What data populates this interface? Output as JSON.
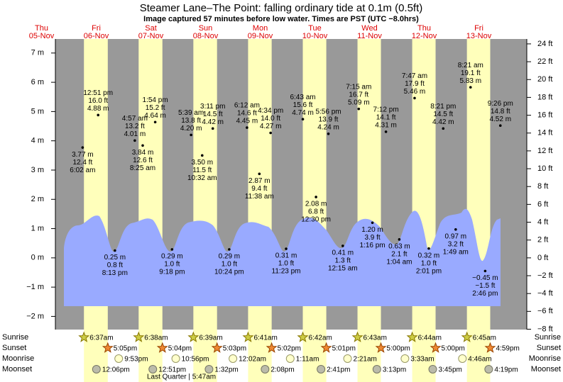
{
  "chart_data": {
    "type": "tide",
    "title": "Steamer Lane–The Point: falling  ordinary tide at 0.1m (0.5ft)",
    "subtitle": "Image captured 57 minutes before low water. Times are PST (UTC −8.0hrs)",
    "ylim": [
      -2.45,
      7.48
    ],
    "yticks": [
      {
        "value": -2,
        "label": "−2 m"
      },
      {
        "value": -1,
        "label": "−1 m"
      },
      {
        "value": 0,
        "label": "0 m"
      },
      {
        "value": 1,
        "label": "1 m"
      },
      {
        "value": 2,
        "label": "2 m"
      },
      {
        "value": 3,
        "label": "3 m"
      },
      {
        "value": 4,
        "label": "4 m"
      },
      {
        "value": 5,
        "label": "5 m"
      },
      {
        "value": 6,
        "label": "6 m"
      },
      {
        "value": 7,
        "label": "7 m"
      }
    ],
    "y2lim": [
      -8.04,
      24.55
    ],
    "y2ticks": [
      {
        "value": -8,
        "label": "−8 ft"
      },
      {
        "value": -6,
        "label": "−6 ft"
      },
      {
        "value": -4,
        "label": "−4 ft"
      },
      {
        "value": -2,
        "label": "−2 ft"
      },
      {
        "value": 0,
        "label": "0 ft"
      },
      {
        "value": 2,
        "label": "2 ft"
      },
      {
        "value": 4,
        "label": "4 ft"
      },
      {
        "value": 6,
        "label": "6 ft"
      },
      {
        "value": 8,
        "label": "8 ft"
      },
      {
        "value": 10,
        "label": "10 ft"
      },
      {
        "value": 12,
        "label": "12 ft"
      },
      {
        "value": 14,
        "label": "14 ft"
      },
      {
        "value": 16,
        "label": "16 ft"
      },
      {
        "value": 18,
        "label": "18 ft"
      },
      {
        "value": 20,
        "label": "20 ft"
      },
      {
        "value": 22,
        "label": "22 ft"
      },
      {
        "value": 24,
        "label": "24 ft"
      }
    ],
    "day_color": "#dd0000",
    "daylight_color": "#ffffbb",
    "night_color": "#999999",
    "row_labels": [
      "Sunrise",
      "Sunset",
      "Moonrise",
      "Moonset"
    ],
    "days": [
      {
        "name": "Thu",
        "date": "05-Nov"
      },
      {
        "name": "Fri",
        "date": "06-Nov",
        "sunrise": "6:37am",
        "sunset": "5:05pm",
        "moonrise": "9:53pm",
        "moonset": "12:06pm",
        "times": [
          "6:02 am",
          "12:51 pm",
          "8:13 pm"
        ],
        "values": [
          3.77,
          4.88,
          0.25
        ],
        "value_labels": [
          "3.77 m",
          "4.88 m",
          "0.25 m"
        ],
        "feet_labels": [
          "12.4 ft",
          "16.0 ft",
          "0.8 ft"
        ]
      },
      {
        "name": "Sat",
        "date": "07-Nov",
        "sunrise": "6:38am",
        "sunset": "5:04pm",
        "moonrise": "10:56pm",
        "moonset": "12:51pm",
        "times": [
          "4:57 am",
          "8:25 am",
          "1:54 pm",
          "9:18 pm"
        ],
        "values": [
          4.01,
          3.84,
          4.64,
          0.29
        ],
        "value_labels": [
          "4.01 m",
          "3.84 m",
          "4.64 m",
          "0.29 m"
        ],
        "feet_labels": [
          "13.2 ft",
          "12.6 ft",
          "15.2 ft",
          "1.0 ft"
        ]
      },
      {
        "name": "Sun",
        "date": "08-Nov",
        "sunrise": "6:39am",
        "sunset": "5:03pm",
        "moonset": "1:32pm",
        "moon_phase": "Last Quarter | 5:47am",
        "times": [
          "5:39 am",
          "10:32 am",
          "3:11 pm",
          "10:24 pm"
        ],
        "values": [
          4.2,
          3.5,
          4.42,
          0.29
        ],
        "value_labels": [
          "4.20 m",
          "3.50 m",
          "4.42 m",
          "0.29 m"
        ],
        "feet_labels": [
          "13.8 ft",
          "11.5 ft",
          "14.5 ft",
          "1.0 ft"
        ]
      },
      {
        "name": "Mon",
        "date": "09-Nov",
        "sunrise": "6:41am",
        "sunset": "5:02pm",
        "moonrise": "12:02am",
        "moonset": "2:08pm",
        "times": [
          "6:12 am",
          "11:38 am",
          "4:34 pm",
          "11:23 pm"
        ],
        "values": [
          4.45,
          2.87,
          4.27,
          0.31
        ],
        "value_labels": [
          "4.45 m",
          "2.87 m",
          "4.27 m",
          "0.31 m"
        ],
        "feet_labels": [
          "14.6 ft",
          "9.4 ft",
          "14.0 ft",
          "1.0 ft"
        ]
      },
      {
        "name": "Tue",
        "date": "10-Nov",
        "sunrise": "6:42am",
        "sunset": "5:01pm",
        "moonrise": "1:11am",
        "moonset": "2:41pm",
        "times": [
          "6:43 am",
          "12:30 pm",
          "5:56 pm"
        ],
        "values": [
          4.74,
          2.08,
          4.24
        ],
        "value_labels": [
          "4.74 m",
          "2.08 m",
          "4.24 m"
        ],
        "feet_labels": [
          "15.6 ft",
          "6.8 ft",
          "13.9 ft"
        ]
      },
      {
        "name": "Wed",
        "date": "11-Nov",
        "sunrise": "6:43am",
        "sunset": "5:00pm",
        "moonrise": "2:21am",
        "moonset": "3:13pm",
        "times": [
          "12:15 am",
          "7:15 am",
          "1:16 pm",
          "7:12 pm"
        ],
        "values": [
          0.41,
          5.09,
          1.2,
          4.31
        ],
        "value_labels": [
          "0.41 m",
          "5.09 m",
          "1.20 m",
          "4.31 m"
        ],
        "feet_labels": [
          "1.3 ft",
          "16.7 ft",
          "3.9 ft",
          "14.1 ft"
        ]
      },
      {
        "name": "Thu",
        "date": "12-Nov",
        "sunrise": "6:44am",
        "sunset": "5:00pm",
        "moonrise": "3:33am",
        "moonset": "3:45pm",
        "times": [
          "1:04 am",
          "7:47 am",
          "2:01 pm",
          "8:21 pm"
        ],
        "values": [
          0.63,
          5.46,
          0.32,
          4.42
        ],
        "value_labels": [
          "0.63 m",
          "5.46 m",
          "0.32 m",
          "4.42 m"
        ],
        "feet_labels": [
          "2.1 ft",
          "17.9 ft",
          "1.0 ft",
          "14.5 ft"
        ]
      },
      {
        "name": "Fri",
        "date": "13-Nov",
        "sunrise": "6:45am",
        "sunset": "4:59pm",
        "moonrise": "4:46am",
        "moonset": "4:19pm",
        "times": [
          "1:49 am",
          "8:21 am",
          "2:46 pm",
          "9:26 pm"
        ],
        "values": [
          0.97,
          5.83,
          -0.45,
          4.52
        ],
        "value_labels": [
          "0.97 m",
          "5.83 m",
          "−0.45 m",
          "4.52 m"
        ],
        "feet_labels": [
          "3.2 ft",
          "19.1 ft",
          "−1.5 ft",
          "14.8 ft"
        ]
      }
    ]
  }
}
